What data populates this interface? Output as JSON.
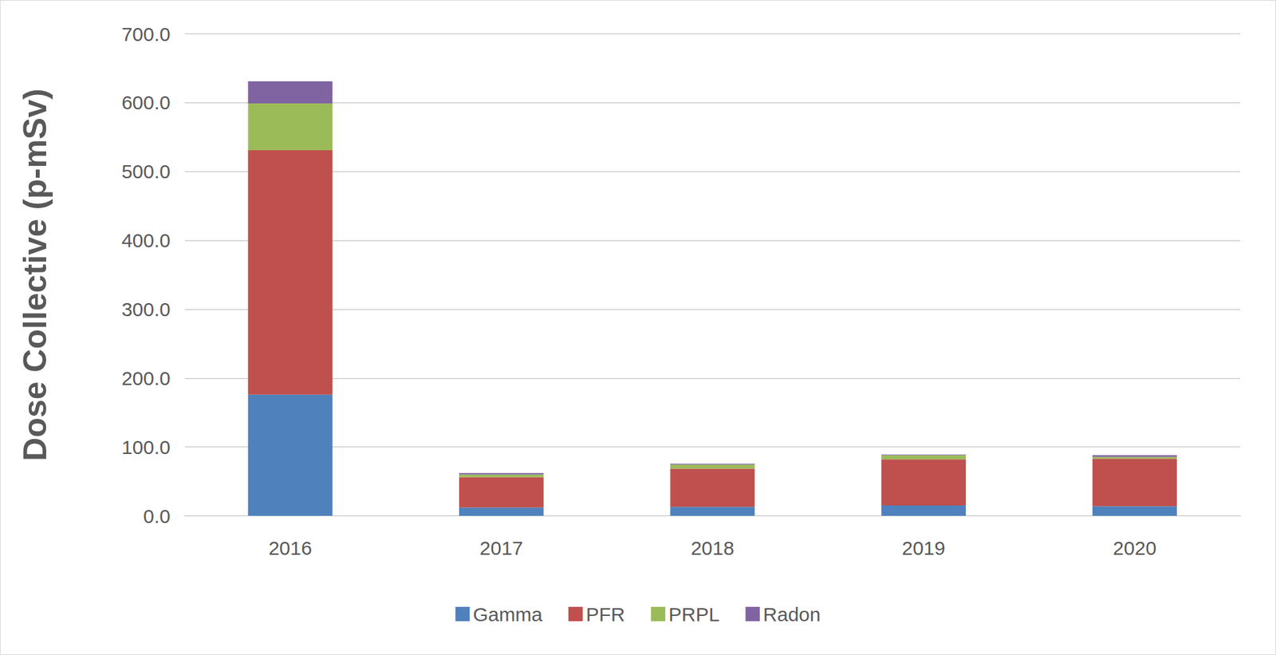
{
  "chart_data": {
    "type": "bar",
    "stacked": true,
    "y_label": "Dose Collective (p-mSv)",
    "categories": [
      "2016",
      "2017",
      "2018",
      "2019",
      "2020"
    ],
    "series": [
      {
        "name": "Gamma",
        "color": "#4f81bd",
        "values": [
          176,
          12,
          13,
          15,
          14
        ]
      },
      {
        "name": "PFR",
        "color": "#c0504d",
        "values": [
          355,
          44,
          55.5,
          67,
          69
        ]
      },
      {
        "name": "PRPL",
        "color": "#9bbb59",
        "values": [
          68,
          4,
          6,
          6,
          2.5
        ]
      },
      {
        "name": "Radon",
        "color": "#8064a2",
        "values": [
          32,
          2,
          1,
          1,
          2.5
        ]
      }
    ],
    "ylim": [
      0,
      700
    ],
    "yticks": [
      {
        "value": 0,
        "label": "0.0"
      },
      {
        "value": 100,
        "label": "100.0"
      },
      {
        "value": 200,
        "label": "200.0"
      },
      {
        "value": 300,
        "label": "300.0"
      },
      {
        "value": 400,
        "label": "400.0"
      },
      {
        "value": 500,
        "label": "500.0"
      },
      {
        "value": 600,
        "label": "600.0"
      },
      {
        "value": 700,
        "label": "700.0"
      }
    ],
    "grid": true,
    "legend": "bottom"
  }
}
